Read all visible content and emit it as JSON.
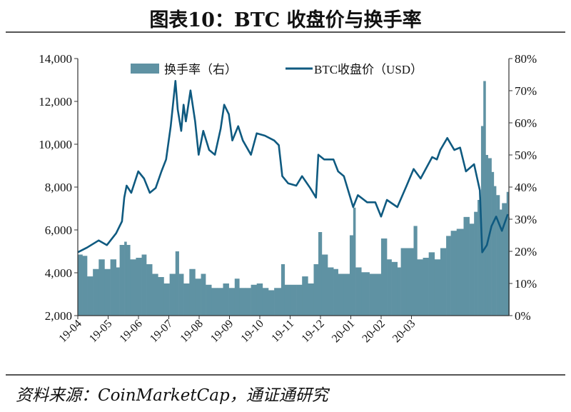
{
  "title": "图表10：BTC 收盘价与换手率",
  "source": "资料来源：CoinMarketCap，通证通研究",
  "colors": {
    "price_line": "#0f5a80",
    "turnover_bar": "#5f92a3",
    "axis": "#333333"
  },
  "chart_data": {
    "type": "bar+line",
    "title": "图表10：BTC 收盘价与换手率",
    "legend": {
      "placement": "top-center",
      "entries": [
        "换手率（右）",
        "BTC收盘价（USD）"
      ]
    },
    "x_tick_labels": [
      "19-04",
      "19-05",
      "19-06",
      "19-07",
      "19-08",
      "19-09",
      "19-10",
      "19-11",
      "19-12",
      "20-01",
      "20-02",
      "20-03"
    ],
    "x_range": [
      "2019-04-01",
      "2020-04-06"
    ],
    "y_left": {
      "range": [
        2000,
        14000
      ],
      "ticks": [
        "2,000",
        "4,000",
        "6,000",
        "8,000",
        "10,000",
        "12,000",
        "14,000"
      ]
    },
    "y_right": {
      "range": [
        0,
        80
      ],
      "unit": "%",
      "ticks": [
        "0%",
        "10%",
        "20%",
        "30%",
        "40%",
        "50%",
        "60%",
        "70%",
        "80%"
      ]
    },
    "grid": false,
    "series": [
      {
        "name": "换手率（右）",
        "type": "bar",
        "axis": "right",
        "points": [
          [
            "2019-04-01",
            19
          ],
          [
            "2019-04-05",
            18.6
          ],
          [
            "2019-04-09",
            12.2
          ],
          [
            "2019-04-14",
            14.5
          ],
          [
            "2019-04-19",
            17.5
          ],
          [
            "2019-04-24",
            14.5
          ],
          [
            "2019-04-29",
            17.5
          ],
          [
            "2019-05-04",
            15
          ],
          [
            "2019-05-07",
            22
          ],
          [
            "2019-05-11",
            23
          ],
          [
            "2019-05-13",
            22
          ],
          [
            "2019-05-16",
            17.5
          ],
          [
            "2019-05-21",
            18
          ],
          [
            "2019-05-26",
            19
          ],
          [
            "2019-05-30",
            16
          ],
          [
            "2019-06-04",
            13
          ],
          [
            "2019-06-09",
            12
          ],
          [
            "2019-06-14",
            10
          ],
          [
            "2019-06-19",
            13
          ],
          [
            "2019-06-24",
            20
          ],
          [
            "2019-06-27",
            13
          ],
          [
            "2019-07-01",
            10
          ],
          [
            "2019-07-06",
            14.5
          ],
          [
            "2019-07-11",
            11.5
          ],
          [
            "2019-07-16",
            13
          ],
          [
            "2019-07-20",
            9.6
          ],
          [
            "2019-07-25",
            8.6
          ],
          [
            "2019-07-30",
            8.6
          ],
          [
            "2019-08-04",
            10
          ],
          [
            "2019-08-09",
            8.6
          ],
          [
            "2019-08-14",
            11.5
          ],
          [
            "2019-08-18",
            8.6
          ],
          [
            "2019-08-23",
            8.6
          ],
          [
            "2019-08-28",
            9.6
          ],
          [
            "2019-09-02",
            10
          ],
          [
            "2019-09-07",
            8.6
          ],
          [
            "2019-09-12",
            7.9
          ],
          [
            "2019-09-17",
            8.6
          ],
          [
            "2019-09-23",
            16
          ],
          [
            "2019-09-26",
            9.6
          ],
          [
            "2019-10-01",
            9.6
          ],
          [
            "2019-10-06",
            9.6
          ],
          [
            "2019-10-11",
            12.2
          ],
          [
            "2019-10-16",
            10
          ],
          [
            "2019-10-21",
            16
          ],
          [
            "2019-10-25",
            26
          ],
          [
            "2019-10-28",
            19
          ],
          [
            "2019-11-02",
            15
          ],
          [
            "2019-11-07",
            14.5
          ],
          [
            "2019-11-11",
            13
          ],
          [
            "2019-11-16",
            13
          ],
          [
            "2019-11-21",
            25
          ],
          [
            "2019-11-24",
            33.6
          ],
          [
            "2019-11-26",
            15
          ],
          [
            "2019-12-01",
            13.5
          ],
          [
            "2019-12-08",
            13
          ],
          [
            "2019-12-13",
            13
          ],
          [
            "2019-12-18",
            24
          ],
          [
            "2019-12-23",
            17.5
          ],
          [
            "2019-12-27",
            16.7
          ],
          [
            "2020-01-01",
            15
          ],
          [
            "2020-01-04",
            21
          ],
          [
            "2020-01-09",
            21
          ],
          [
            "2020-01-15",
            27.9
          ],
          [
            "2020-01-18",
            17.5
          ],
          [
            "2020-01-23",
            18
          ],
          [
            "2020-01-28",
            19.7
          ],
          [
            "2020-02-02",
            17.5
          ],
          [
            "2020-02-07",
            21
          ],
          [
            "2020-02-12",
            24.8
          ],
          [
            "2020-02-16",
            26.4
          ],
          [
            "2020-02-21",
            27
          ],
          [
            "2020-02-27",
            30.7
          ],
          [
            "2020-03-03",
            28.6
          ],
          [
            "2020-03-07",
            32.3
          ],
          [
            "2020-03-10",
            36
          ],
          [
            "2020-03-13",
            59
          ],
          [
            "2020-03-15",
            73
          ],
          [
            "2020-03-17",
            50
          ],
          [
            "2020-03-19",
            49
          ],
          [
            "2020-03-22",
            44.7
          ],
          [
            "2020-03-24",
            40.3
          ],
          [
            "2020-03-26",
            37.5
          ],
          [
            "2020-03-29",
            33
          ],
          [
            "2020-03-31",
            35
          ],
          [
            "2020-04-04",
            38.5
          ],
          [
            "2020-04-06",
            30.7
          ]
        ]
      },
      {
        "name": "BTC收盘价（USD）",
        "type": "line",
        "axis": "left",
        "points": [
          [
            "2019-04-01",
            4956
          ],
          [
            "2019-04-09",
            5178
          ],
          [
            "2019-04-19",
            5511
          ],
          [
            "2019-04-26",
            5289
          ],
          [
            "2019-05-04",
            5844
          ],
          [
            "2019-05-09",
            6400
          ],
          [
            "2019-05-11",
            7511
          ],
          [
            "2019-05-13",
            8067
          ],
          [
            "2019-05-17",
            7733
          ],
          [
            "2019-05-23",
            8733
          ],
          [
            "2019-05-28",
            8400
          ],
          [
            "2019-06-02",
            7733
          ],
          [
            "2019-06-07",
            7956
          ],
          [
            "2019-06-12",
            8733
          ],
          [
            "2019-06-16",
            9289
          ],
          [
            "2019-06-20",
            10844
          ],
          [
            "2019-06-24",
            12956
          ],
          [
            "2019-06-26",
            11622
          ],
          [
            "2019-06-29",
            10622
          ],
          [
            "2019-07-01",
            11844
          ],
          [
            "2019-07-03",
            11067
          ],
          [
            "2019-07-07",
            12511
          ],
          [
            "2019-07-11",
            11067
          ],
          [
            "2019-07-14",
            9511
          ],
          [
            "2019-07-18",
            10622
          ],
          [
            "2019-07-23",
            9733
          ],
          [
            "2019-07-28",
            9511
          ],
          [
            "2019-08-02",
            10733
          ],
          [
            "2019-08-05",
            11844
          ],
          [
            "2019-08-09",
            11400
          ],
          [
            "2019-08-12",
            10178
          ],
          [
            "2019-08-17",
            10844
          ],
          [
            "2019-08-21",
            10178
          ],
          [
            "2019-08-28",
            9511
          ],
          [
            "2019-09-02",
            10511
          ],
          [
            "2019-09-09",
            10400
          ],
          [
            "2019-09-17",
            10178
          ],
          [
            "2019-09-21",
            9956
          ],
          [
            "2019-09-24",
            8511
          ],
          [
            "2019-09-29",
            8178
          ],
          [
            "2019-10-06",
            8067
          ],
          [
            "2019-10-11",
            8511
          ],
          [
            "2019-10-18",
            7956
          ],
          [
            "2019-10-23",
            7511
          ],
          [
            "2019-10-25",
            9511
          ],
          [
            "2019-10-30",
            9289
          ],
          [
            "2019-11-07",
            9289
          ],
          [
            "2019-11-11",
            8733
          ],
          [
            "2019-11-16",
            8511
          ],
          [
            "2019-11-24",
            7067
          ],
          [
            "2019-11-28",
            7622
          ],
          [
            "2019-12-06",
            7289
          ],
          [
            "2019-12-13",
            7289
          ],
          [
            "2019-12-18",
            6622
          ],
          [
            "2019-12-23",
            7400
          ],
          [
            "2020-01-01",
            7067
          ],
          [
            "2020-01-09",
            8067
          ],
          [
            "2020-01-15",
            8844
          ],
          [
            "2020-01-21",
            8400
          ],
          [
            "2020-01-31",
            9400
          ],
          [
            "2020-02-04",
            9289
          ],
          [
            "2020-02-07",
            9733
          ],
          [
            "2020-02-13",
            10289
          ],
          [
            "2020-02-19",
            9733
          ],
          [
            "2020-02-24",
            9844
          ],
          [
            "2020-02-29",
            8733
          ],
          [
            "2020-03-07",
            9067
          ],
          [
            "2020-03-12",
            7844
          ],
          [
            "2020-03-14",
            4956
          ],
          [
            "2020-03-18",
            5289
          ],
          [
            "2020-03-22",
            6178
          ],
          [
            "2020-03-26",
            6622
          ],
          [
            "2020-03-31",
            5956
          ],
          [
            "2020-04-05",
            6733
          ]
        ]
      }
    ]
  }
}
